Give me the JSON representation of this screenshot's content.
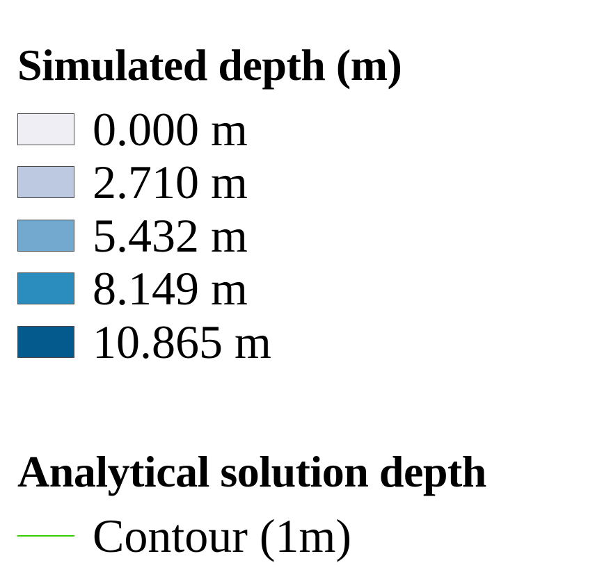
{
  "simulated_depth": {
    "title": "Simulated depth (m)",
    "items": [
      {
        "label": "0.000 m",
        "color": "#f0eef5"
      },
      {
        "label": "2.710 m",
        "color": "#bdc9e1"
      },
      {
        "label": "5.432 m",
        "color": "#74a9cf"
      },
      {
        "label": "8.149 m",
        "color": "#2b8cbe"
      },
      {
        "label": "10.865 m",
        "color": "#045a8d"
      }
    ]
  },
  "analytical_depth": {
    "title": "Analytical solution depth",
    "items": [
      {
        "label": "Contour (1m)",
        "color": "#33cc00"
      }
    ]
  }
}
